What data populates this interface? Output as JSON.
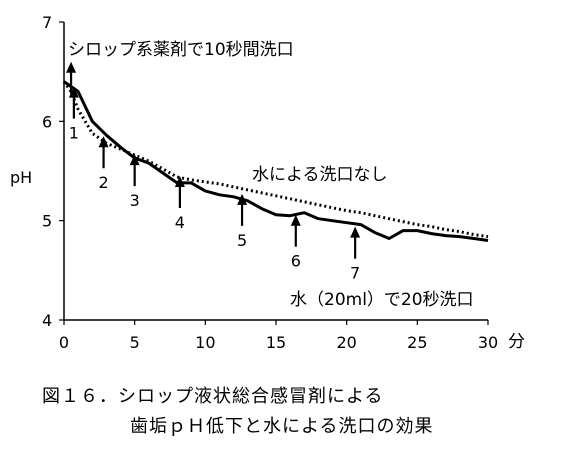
{
  "chart_data": {
    "type": "line",
    "ylabel": "pH",
    "xunit": "分",
    "xlim": [
      0,
      30
    ],
    "ylim": [
      4,
      7
    ],
    "xticks": [
      "0",
      "5",
      "10",
      "15",
      "20",
      "25",
      "30"
    ],
    "yticks": [
      "4",
      "5",
      "6",
      "7"
    ],
    "annotations": {
      "solid_top": "シロップ系薬剤で10秒間洗口",
      "dotted": "水による洗口なし",
      "solid_bottom": "水（20ml）で20秒洗口"
    },
    "series": [
      {
        "name": "水による洗口なし",
        "style": "dotted",
        "x": [
          0,
          0.5,
          1,
          2,
          3,
          4,
          5,
          6,
          7,
          8,
          9,
          10,
          11,
          12,
          13,
          14,
          15,
          16,
          17,
          18,
          19,
          20,
          21,
          22,
          23,
          24,
          25,
          26,
          27,
          28,
          29,
          30
        ],
        "y": [
          6.4,
          6.3,
          6.12,
          5.88,
          5.78,
          5.72,
          5.66,
          5.6,
          5.52,
          5.44,
          5.41,
          5.39,
          5.37,
          5.34,
          5.31,
          5.28,
          5.25,
          5.22,
          5.19,
          5.16,
          5.13,
          5.1,
          5.08,
          5.05,
          5.02,
          4.99,
          4.96,
          4.94,
          4.91,
          4.89,
          4.86,
          4.84
        ]
      },
      {
        "name": "シロップ系薬剤で10秒間洗口",
        "style": "solid",
        "x": [
          0,
          1,
          2,
          3,
          4,
          5,
          6,
          7,
          8,
          9,
          10,
          11,
          12,
          13,
          14,
          15,
          16,
          17,
          18,
          19,
          20,
          21,
          22,
          23,
          24,
          25,
          26,
          27,
          28,
          29,
          30
        ],
        "y": [
          6.4,
          6.3,
          6.0,
          5.86,
          5.74,
          5.63,
          5.58,
          5.48,
          5.38,
          5.38,
          5.3,
          5.26,
          5.24,
          5.2,
          5.12,
          5.06,
          5.05,
          5.08,
          5.02,
          5.0,
          4.98,
          4.96,
          4.88,
          4.82,
          4.9,
          4.9,
          4.87,
          4.85,
          4.84,
          4.82,
          4.8
        ]
      }
    ],
    "arrows": [
      {
        "x": 0.5,
        "y": 6.6,
        "label": ""
      },
      {
        "x": 0.7,
        "y": 6.35,
        "label": "1"
      },
      {
        "x": 2.8,
        "y": 5.85,
        "label": "2"
      },
      {
        "x": 5.0,
        "y": 5.67,
        "label": "3"
      },
      {
        "x": 8.2,
        "y": 5.45,
        "label": "4"
      },
      {
        "x": 12.6,
        "y": 5.27,
        "label": "5"
      },
      {
        "x": 16.4,
        "y": 5.06,
        "label": "6"
      },
      {
        "x": 20.6,
        "y": 4.94,
        "label": "7"
      }
    ]
  },
  "caption": {
    "line1": "図１６．シロップ液状総合感冒剤による",
    "line2": "歯垢ｐＨ低下と水による洗口の効果"
  }
}
